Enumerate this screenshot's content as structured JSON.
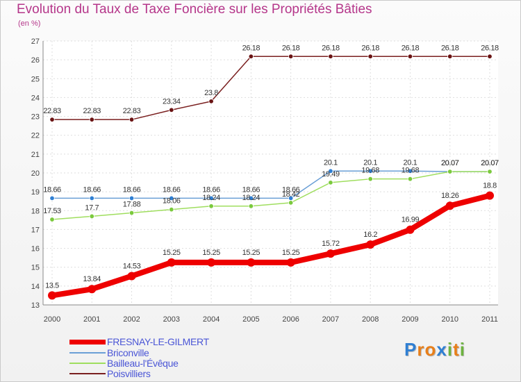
{
  "title": "Evolution du Taux de Taxe Foncière sur les Propriétés Bâties",
  "unit_label": "(en %)",
  "logo": {
    "letters": [
      "P",
      "r",
      "o",
      "x",
      "i",
      "t",
      "i"
    ],
    "colors": [
      "#2f7fd3",
      "#e87f1a",
      "#e87f1a",
      "#2f7fd3",
      "#6db33f",
      "#e87f1a",
      "#6db33f"
    ]
  },
  "chart_data": {
    "type": "line",
    "title": "Evolution du Taux de Taxe Foncière sur les Propriétés Bâties",
    "ylabel": "(en %)",
    "xlabel": "",
    "ylim": [
      13,
      27
    ],
    "yticks": [
      "13",
      "14",
      "15",
      "16",
      "17",
      "18",
      "19",
      "20",
      "21",
      "22",
      "23",
      "24",
      "25",
      "26",
      "27"
    ],
    "categories": [
      "2000",
      "2001",
      "2002",
      "2003",
      "2004",
      "2005",
      "2006",
      "2007",
      "2008",
      "2009",
      "2010",
      "2011"
    ],
    "grid": true,
    "legend": "bottom-left",
    "series": [
      {
        "name": "Poisvilliers",
        "color": "#7a1f1f",
        "marker": "#6a1414",
        "values": [
          22.83,
          22.83,
          22.83,
          23.34,
          23.8,
          26.18,
          26.18,
          26.18,
          26.18,
          26.18,
          26.18,
          26.18
        ],
        "labels": [
          "22.83",
          "22.83",
          "22.83",
          "23.34",
          "23.8",
          "26.18",
          "26.18",
          "26.18",
          "26.18",
          "26.18",
          "26.18",
          "26.18"
        ]
      },
      {
        "name": "Briconville",
        "color": "#6a9fd6",
        "marker": "#2f7fd3",
        "values": [
          18.66,
          18.66,
          18.66,
          18.66,
          18.66,
          18.66,
          18.66,
          20.1,
          20.1,
          20.1,
          20.07,
          20.07
        ],
        "labels": [
          "18.66",
          "18.66",
          "18.66",
          "18.66",
          "18.66",
          "18.66",
          "18.66",
          "20.1",
          "20.1",
          "20.1",
          "20.07",
          "20.07"
        ]
      },
      {
        "name": "Bailleau-l'Évêque",
        "color": "#9fde5e",
        "marker": "#7bc93d",
        "values": [
          17.53,
          17.7,
          17.88,
          18.06,
          18.24,
          18.24,
          18.42,
          19.49,
          19.68,
          19.68,
          20.07,
          20.07
        ],
        "labels": [
          "17.53",
          "17.7",
          "17.88",
          "18.06",
          "18.24",
          "18.24",
          "18.42",
          "19.49",
          "19.68",
          "19.68",
          "20.07",
          "20.07"
        ]
      },
      {
        "name": "FRESNAY-LE-GILMERT",
        "color": "#ee0000",
        "marker": "#ee0000",
        "values": [
          13.5,
          13.84,
          14.53,
          15.25,
          15.25,
          15.25,
          15.25,
          15.72,
          16.2,
          16.99,
          18.26,
          18.8
        ],
        "labels": [
          "13.5",
          "13.84",
          "14.53",
          "15.25",
          "15.25",
          "15.25",
          "15.25",
          "15.72",
          "16.2",
          "16.99",
          "18.26",
          "18.8"
        ]
      }
    ]
  }
}
